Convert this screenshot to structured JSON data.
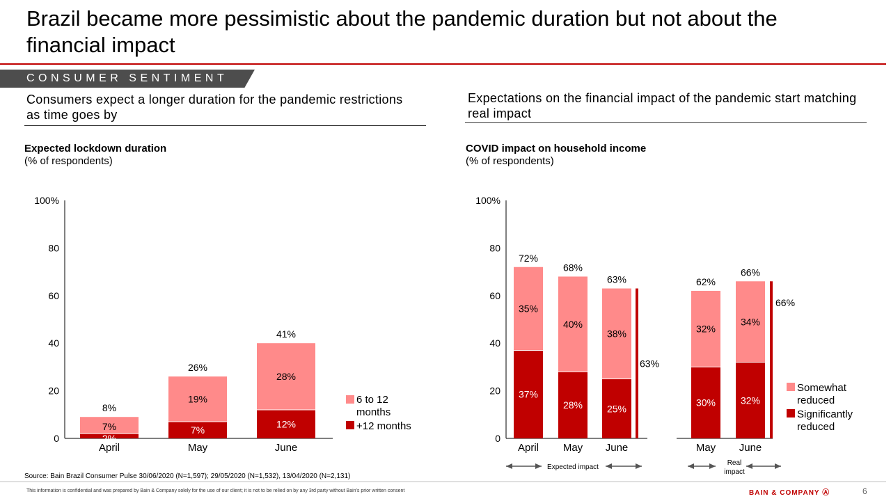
{
  "slide": {
    "title": "Brazil became more pessimistic about the pandemic duration but not about the financial impact",
    "tag": "CONSUMER SENTIMENT",
    "left_subhead": "Consumers expect a longer duration for the pandemic restrictions as time goes by",
    "right_subhead": "Expectations on the financial impact of the pandemic start matching real impact",
    "source": "Source: Bain Brazil Consumer Pulse 30/06/2020 (N=1,597); 29/05/2020 (N=1,532), 13/04/2020 (N=2,131)",
    "confidential": "This information is confidential and was prepared by Bain & Company solely for the use of our client; it is not to be relied on by any 3rd party without Bain's prior written consent",
    "logo": "BAIN & COMPANY",
    "page": "6"
  },
  "colors": {
    "light": "#ff8a8a",
    "dark": "#c00000",
    "axis": "#000000",
    "rule": "#c00000"
  },
  "chart_data": [
    {
      "type": "bar",
      "stacked": true,
      "title": "Expected lockdown duration",
      "subtitle": "(% of respondents)",
      "categories": [
        "April",
        "May",
        "June"
      ],
      "series": [
        {
          "name": "+12 months",
          "color": "#c00000",
          "values": [
            2,
            7,
            12
          ],
          "labels": [
            "2%",
            "7%",
            "12%"
          ]
        },
        {
          "name": "6 to 12 months",
          "color": "#ff8a8a",
          "values": [
            7,
            19,
            28
          ],
          "labels": [
            "7%",
            "19%",
            "28%"
          ]
        }
      ],
      "totals": [
        8,
        26,
        41
      ],
      "total_labels": [
        "8%",
        "26%",
        "41%"
      ],
      "y_ticks": [
        "100%",
        "80",
        "60",
        "40",
        "20",
        "0"
      ],
      "ylim": [
        0,
        100
      ],
      "legend": [
        "6 to 12 months",
        "+12 months"
      ]
    },
    {
      "type": "bar",
      "stacked": true,
      "title": "COVID impact on household income",
      "subtitle": "(% of respondents)",
      "categories": [
        "April",
        "May",
        "June",
        "May",
        "June"
      ],
      "groups": [
        "Expected impact",
        "Real impact"
      ],
      "series": [
        {
          "name": "Significantly reduced",
          "color": "#c00000",
          "values": [
            37,
            28,
            25,
            30,
            32
          ],
          "labels": [
            "37%",
            "28%",
            "25%",
            "30%",
            "32%"
          ]
        },
        {
          "name": "Somewhat reduced",
          "color": "#ff8a8a",
          "values": [
            35,
            40,
            38,
            32,
            34
          ],
          "labels": [
            "35%",
            "40%",
            "38%",
            "32%",
            "34%"
          ]
        }
      ],
      "totals": [
        72,
        68,
        63,
        62,
        66
      ],
      "total_labels": [
        "72%",
        "68%",
        "63%",
        "62%",
        "66%"
      ],
      "bracket_labels": [
        "63%",
        "66%"
      ],
      "y_ticks": [
        "100%",
        "80",
        "60",
        "40",
        "20",
        "0"
      ],
      "ylim": [
        0,
        100
      ],
      "legend": [
        "Somewhat reduced",
        "Significantly reduced"
      ]
    }
  ]
}
